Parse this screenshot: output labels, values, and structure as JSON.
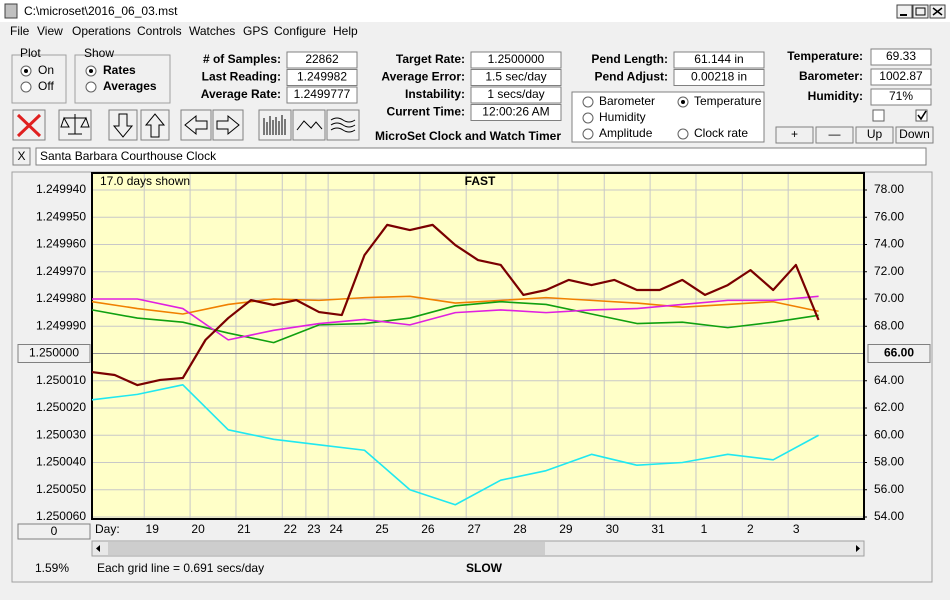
{
  "window": {
    "title": "C:\\microset\\2016_06_03.mst"
  },
  "menu": [
    "File",
    "View",
    "Operations",
    "Controls",
    "Watches",
    "GPS",
    "Configure",
    "Help"
  ],
  "plot_group": {
    "title": "Plot",
    "options": [
      "On",
      "Off"
    ]
  },
  "show_group": {
    "title": "Show",
    "options": [
      "Rates",
      "Averages"
    ]
  },
  "stats": [
    {
      "label": "# of Samples:",
      "value": "22862"
    },
    {
      "label": "Last Reading:",
      "value": "1.249982"
    },
    {
      "label": "Average Rate:",
      "value": "1.2499777"
    }
  ],
  "timing": [
    {
      "label": "Target Rate:",
      "value": "1.2500000"
    },
    {
      "label": "Average Error:",
      "value": "1.5 sec/day"
    },
    {
      "label": "Instability:",
      "value": "1 secs/day"
    },
    {
      "label": "Current Time:",
      "value": "12:00:26 AM"
    }
  ],
  "app_title": "MicroSet Clock and Watch Timer",
  "pendulum": [
    {
      "label": "Pend Length:",
      "value": "61.144 in"
    },
    {
      "label": "Pend Adjust:",
      "value": "0.00218 in"
    }
  ],
  "environment": [
    {
      "label": "Temperature:",
      "value": "69.33"
    },
    {
      "label": "Barometer:",
      "value": "1002.87"
    },
    {
      "label": "Humidity:",
      "value": "71%"
    }
  ],
  "buttons": [
    "+",
    "—",
    "Up",
    "Down"
  ],
  "close_button": "X",
  "clock_name": "Santa Barbara Courthouse Clock",
  "chart_data": {
    "type": "line",
    "title": "FAST",
    "subtitle": "17.0 days shown",
    "bottom_title": "SLOW",
    "note": "Each grid line = 0.691 secs/day",
    "status": "1.59%",
    "scroll_label": "0",
    "x_label": "Day:",
    "legend_selected": "Temperature",
    "grid": true,
    "xlim": [
      0,
      17
    ],
    "xticks": [
      {
        "value": 1.15,
        "label": "19"
      },
      {
        "value": 2.16,
        "label": "20"
      },
      {
        "value": 3.17,
        "label": "21"
      },
      {
        "value": 4.19,
        "label": "22"
      },
      {
        "value": 4.71,
        "label": "23"
      },
      {
        "value": 5.2,
        "label": "24"
      },
      {
        "value": 6.21,
        "label": "25"
      },
      {
        "value": 7.22,
        "label": "26"
      },
      {
        "value": 8.24,
        "label": "27"
      },
      {
        "value": 9.25,
        "label": "28"
      },
      {
        "value": 10.26,
        "label": "29"
      },
      {
        "value": 11.28,
        "label": "30"
      },
      {
        "value": 12.29,
        "label": "31"
      },
      {
        "value": 13.3,
        "label": "1"
      },
      {
        "value": 14.32,
        "label": "2"
      },
      {
        "value": 15.33,
        "label": "3"
      }
    ],
    "ylim": [
      1.25006,
      1.24994
    ],
    "yticks": [
      {
        "value": 1.24994,
        "label": "1.249940"
      },
      {
        "value": 1.24995,
        "label": "1.249950"
      },
      {
        "value": 1.24996,
        "label": "1.249960"
      },
      {
        "value": 1.24997,
        "label": "1.249970"
      },
      {
        "value": 1.24998,
        "label": "1.249980"
      },
      {
        "value": 1.24999,
        "label": "1.249990"
      },
      {
        "value": 1.25001,
        "label": "1.250010"
      },
      {
        "value": 1.25002,
        "label": "1.250020"
      },
      {
        "value": 1.25003,
        "label": "1.250030"
      },
      {
        "value": 1.25004,
        "label": "1.250040"
      },
      {
        "value": 1.25005,
        "label": "1.250050"
      },
      {
        "value": 1.25006,
        "label": "1.250060"
      }
    ],
    "ycenter": {
      "value": 1.25,
      "label": "1.250000"
    },
    "y2lim": [
      54,
      78
    ],
    "y2ticks": [
      {
        "value": 78,
        "label": "78.00"
      },
      {
        "value": 76,
        "label": "76.00"
      },
      {
        "value": 74,
        "label": "74.00"
      },
      {
        "value": 72,
        "label": "72.00"
      },
      {
        "value": 70,
        "label": "70.00"
      },
      {
        "value": 68,
        "label": "68.00"
      },
      {
        "value": 64,
        "label": "64.00"
      },
      {
        "value": 62,
        "label": "62.00"
      },
      {
        "value": 60,
        "label": "60.00"
      },
      {
        "value": 58,
        "label": "58.00"
      },
      {
        "value": 56,
        "label": "56.00"
      },
      {
        "value": 54,
        "label": "54.00"
      }
    ],
    "y2center": {
      "value": 66,
      "label": "66.00"
    },
    "series": [
      {
        "name": "Barometer",
        "color": "#f08000",
        "axis": "y2",
        "x": [
          0,
          1,
          2,
          3,
          4,
          5,
          6,
          7,
          8,
          9,
          10,
          11,
          12,
          13,
          14,
          15,
          16
        ],
        "values": [
          69.8,
          69.3,
          68.9,
          69.6,
          70.0,
          69.9,
          70.1,
          70.2,
          69.7,
          69.9,
          70.1,
          69.9,
          69.7,
          69.4,
          69.6,
          69.8,
          69.1
        ]
      },
      {
        "name": "Temperature",
        "color": "#10a010",
        "axis": "y2",
        "x": [
          0,
          1,
          2,
          3,
          4,
          5,
          6,
          7,
          8,
          9,
          10,
          11,
          12,
          13,
          14,
          15,
          16
        ],
        "values": [
          69.2,
          68.6,
          68.3,
          67.5,
          66.8,
          68.1,
          68.2,
          68.6,
          69.5,
          69.8,
          69.6,
          68.9,
          68.2,
          68.3,
          67.9,
          68.3,
          68.8
        ]
      },
      {
        "name": "Humidity",
        "color": "#e020e0",
        "axis": "y2",
        "x": [
          0,
          1,
          2,
          3,
          4,
          5,
          6,
          7,
          8,
          9,
          10,
          11,
          12,
          13,
          14,
          15,
          16
        ],
        "values": [
          70.0,
          70.0,
          69.3,
          67.0,
          67.7,
          68.2,
          68.5,
          68.1,
          69.0,
          69.2,
          69.0,
          69.2,
          69.3,
          69.6,
          69.9,
          69.9,
          70.2
        ]
      },
      {
        "name": "Amplitude",
        "color": "#20e8f0",
        "axis": "y2",
        "x": [
          0,
          1,
          2,
          3,
          4,
          5,
          6,
          7,
          8,
          9,
          10,
          11,
          12,
          13,
          14,
          15,
          16
        ],
        "values": [
          62.6,
          63.0,
          63.7,
          60.4,
          59.7,
          59.3,
          58.9,
          56.0,
          54.9,
          56.7,
          57.4,
          58.6,
          57.8,
          58.0,
          58.6,
          58.2,
          60.0
        ]
      },
      {
        "name": "Clock rate",
        "color": "#7a0000",
        "axis": "y",
        "x": [
          0,
          0.5,
          1,
          1.5,
          2,
          2.5,
          3,
          3.5,
          4,
          4.5,
          5,
          5.5,
          6,
          6.5,
          7,
          7.5,
          8,
          8.5,
          9,
          9.5,
          10,
          10.5,
          11,
          11.5,
          12,
          12.5,
          13,
          13.5,
          14,
          14.5,
          15,
          15.5,
          16
        ],
        "values": [
          1.2500068,
          1.2500079,
          1.2500116,
          1.2500097,
          1.250009,
          1.249995,
          1.249987,
          1.2499804,
          1.2499822,
          1.2499804,
          1.2499848,
          1.2499859,
          1.2499639,
          1.2499528,
          1.2499547,
          1.2499528,
          1.2499602,
          1.2499657,
          1.2499675,
          1.2499785,
          1.2499767,
          1.249973,
          1.2499749,
          1.249973,
          1.2499767,
          1.2499767,
          1.249973,
          1.2499785,
          1.2499749,
          1.2499694,
          1.2499767,
          1.2499675,
          1.2499877
        ]
      }
    ]
  }
}
